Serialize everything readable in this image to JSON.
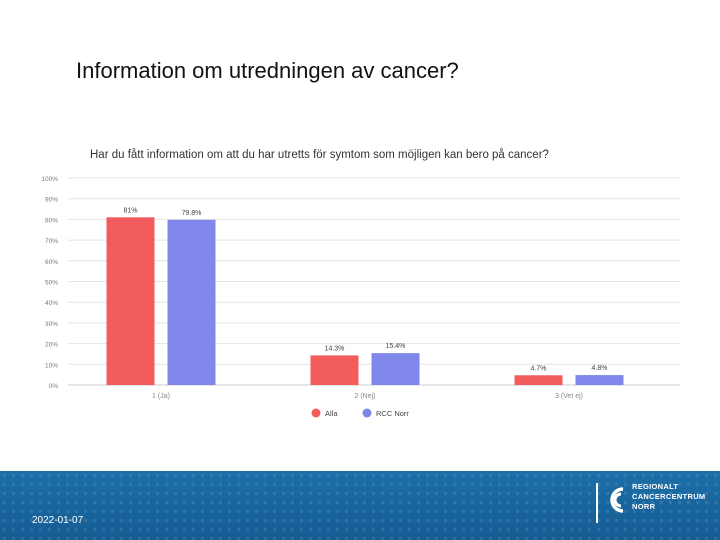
{
  "slide": {
    "title": "Information om utredningen av cancer?",
    "date": "2022-01-07"
  },
  "logo": {
    "line1": "REGIONALT",
    "line2": "CANCERCENTRUM",
    "line3": "NORR"
  },
  "chart_data": {
    "type": "bar",
    "title": "Har du fått information om att du har utretts för symtom som möjligen kan bero på cancer?",
    "categories": [
      "1 (Ja)",
      "2 (Nej)",
      "3 (Vet ej)"
    ],
    "series": [
      {
        "name": "Alla",
        "color": "#f25c5c",
        "values": [
          81,
          14.3,
          4.7
        ],
        "labels": [
          "81%",
          "14.3%",
          "4.7%"
        ]
      },
      {
        "name": "RCC Norr",
        "color": "#7f88ea",
        "values": [
          79.8,
          15.4,
          4.8
        ],
        "labels": [
          "79.8%",
          "15.4%",
          "4.8%"
        ]
      }
    ],
    "ylim": [
      0,
      100
    ],
    "yticks": [
      "0%",
      "10%",
      "20%",
      "30%",
      "40%",
      "50%",
      "60%",
      "70%",
      "80%",
      "90%",
      "100%"
    ],
    "grid": true,
    "legend": "bottom-center"
  }
}
